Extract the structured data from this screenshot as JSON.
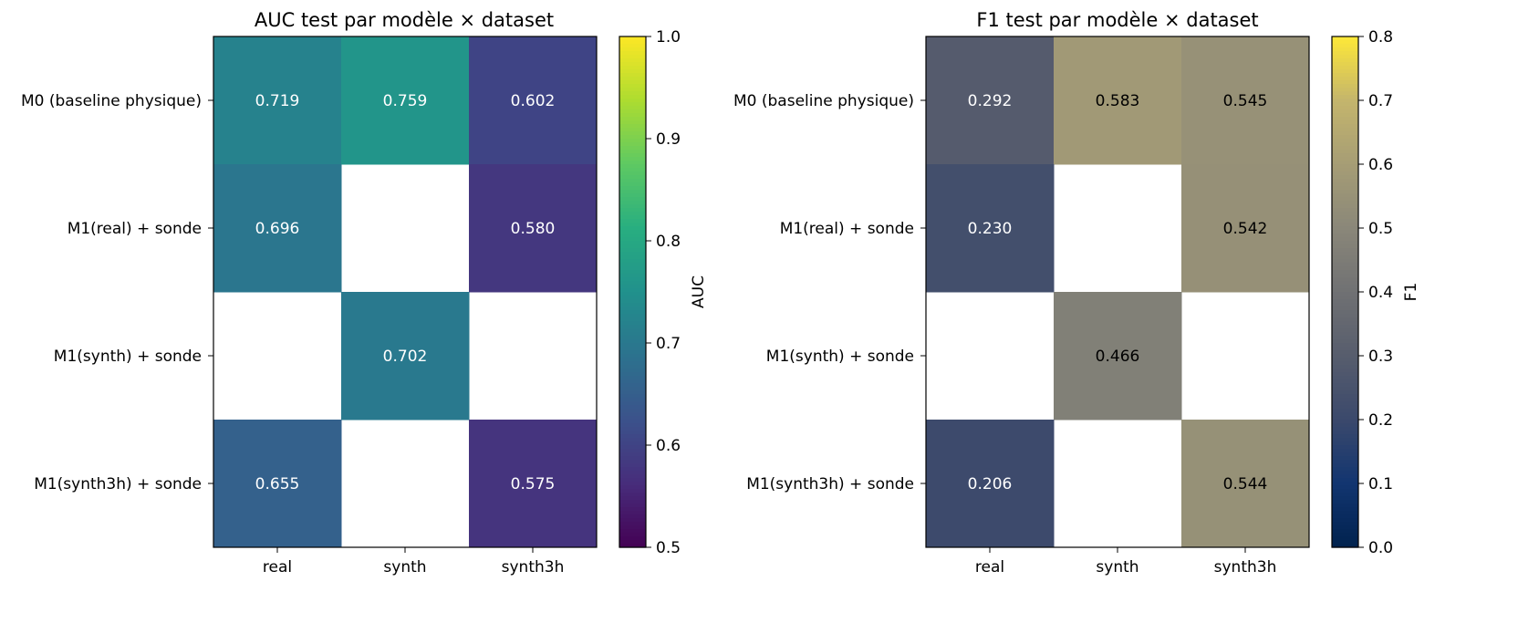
{
  "chart_data": [
    {
      "type": "heatmap",
      "title": "AUC test par modèle × dataset",
      "columns": [
        "real",
        "synth",
        "synth3h"
      ],
      "rows": [
        "M0 (baseline physique)",
        "M1(real) + sonde",
        "M1(synth) + sonde",
        "M1(synth3h) + sonde"
      ],
      "values": [
        [
          0.719,
          0.759,
          0.602
        ],
        [
          0.696,
          null,
          0.58
        ],
        [
          null,
          0.702,
          null
        ],
        [
          0.655,
          null,
          0.575
        ]
      ],
      "value_labels": [
        [
          "0.719",
          "0.759",
          "0.602"
        ],
        [
          "0.696",
          "",
          "0.580"
        ],
        [
          "",
          "0.702",
          ""
        ],
        [
          "0.655",
          "",
          "0.575"
        ]
      ],
      "colormap": "viridis",
      "vmin": 0.5,
      "vmax": 1.0,
      "colorbar": {
        "label": "AUC",
        "ticks": [
          0.5,
          0.6,
          0.7,
          0.8,
          0.9,
          1.0
        ],
        "tick_labels": [
          "0.5",
          "0.6",
          "0.7",
          "0.8",
          "0.9",
          "1.0"
        ]
      }
    },
    {
      "type": "heatmap",
      "title": "F1 test par modèle × dataset",
      "columns": [
        "real",
        "synth",
        "synth3h"
      ],
      "rows": [
        "M0 (baseline physique)",
        "M1(real) + sonde",
        "M1(synth) + sonde",
        "M1(synth3h) + sonde"
      ],
      "values": [
        [
          0.292,
          0.583,
          0.545
        ],
        [
          0.23,
          null,
          0.542
        ],
        [
          null,
          0.466,
          null
        ],
        [
          0.206,
          null,
          0.544
        ]
      ],
      "value_labels": [
        [
          "0.292",
          "0.583",
          "0.545"
        ],
        [
          "0.230",
          "",
          "0.542"
        ],
        [
          "",
          "0.466",
          ""
        ],
        [
          "0.206",
          "",
          "0.544"
        ]
      ],
      "colormap": "cividis",
      "vmin": 0.0,
      "vmax": 0.8,
      "colorbar": {
        "label": "F1",
        "ticks": [
          0.0,
          0.1,
          0.2,
          0.3,
          0.4,
          0.5,
          0.6,
          0.7,
          0.8
        ],
        "tick_labels": [
          "0.0",
          "0.1",
          "0.2",
          "0.3",
          "0.4",
          "0.5",
          "0.6",
          "0.7",
          "0.8"
        ]
      }
    }
  ]
}
